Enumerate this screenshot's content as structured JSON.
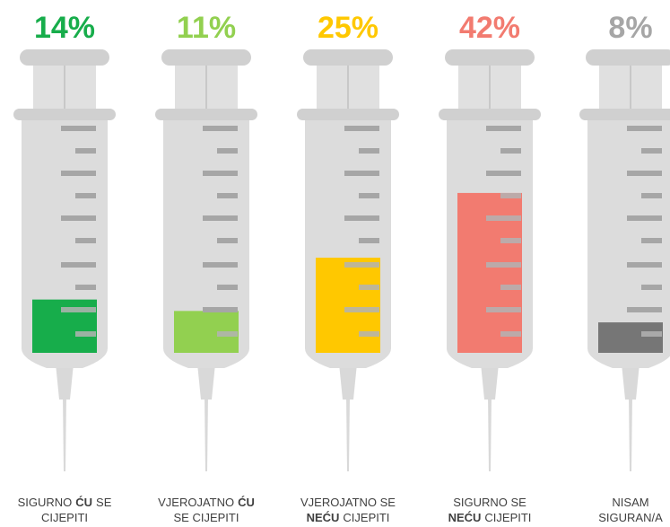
{
  "chart_data": {
    "type": "syringe",
    "categories": [
      [
        [
          {
            "text": "SIGURNO"
          },
          {
            "text": "ĆU",
            "bold": true
          },
          {
            "text": "SE"
          }
        ],
        [
          {
            "text": "CIJEPITI"
          }
        ]
      ],
      [
        [
          {
            "text": "VJEROJATNO"
          },
          {
            "text": "ĆU",
            "bold": true
          }
        ],
        [
          {
            "text": "SE CIJEPITI"
          }
        ]
      ],
      [
        [
          {
            "text": "VJEROJATNO SE"
          }
        ],
        [
          {
            "text": "NEĆU",
            "bold": true
          },
          {
            "text": "CIJEPITI"
          }
        ]
      ],
      [
        [
          {
            "text": "SIGURNO SE"
          }
        ],
        [
          {
            "text": "NEĆU",
            "bold": true
          },
          {
            "text": "CIJEPITI"
          }
        ]
      ],
      [
        [
          {
            "text": "NISAM"
          }
        ],
        [
          {
            "text": "SIGURAN/A"
          }
        ]
      ]
    ],
    "values": [
      14,
      11,
      25,
      42,
      8
    ],
    "value_labels": [
      "14%",
      "11%",
      "25%",
      "42%",
      "8%"
    ],
    "colors": [
      "#17ad4b",
      "#92d050",
      "#ffc800",
      "#f27b70",
      "#767676"
    ],
    "label_colors": [
      "#17ad4b",
      "#92d050",
      "#ffc800",
      "#f27b70",
      "#a6a6a6"
    ],
    "ylim": [
      0,
      50
    ]
  }
}
